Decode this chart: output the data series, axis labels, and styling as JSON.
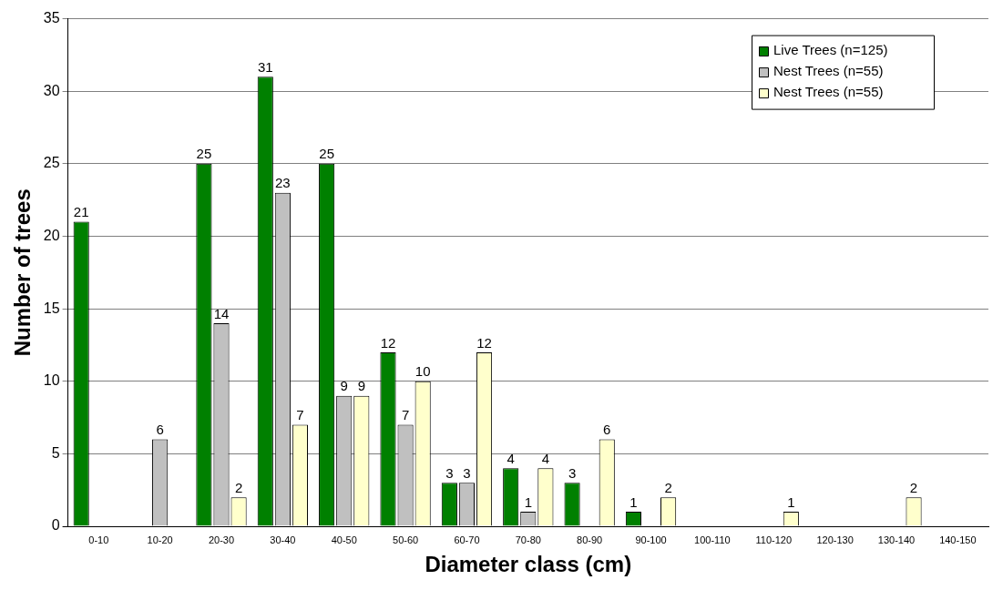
{
  "chart_data": {
    "type": "bar",
    "xlabel": "Diameter class (cm)",
    "ylabel": "Number of trees",
    "categories": [
      "0-10",
      "10-20",
      "20-30",
      "30-40",
      "40-50",
      "50-60",
      "60-70",
      "70-80",
      "80-90",
      "90-100",
      "100-110",
      "110-120",
      "120-130",
      "130-140",
      "140-150"
    ],
    "series": [
      {
        "name": "Live Trees (n=125)",
        "color": "#008000",
        "values": [
          21,
          0,
          25,
          31,
          25,
          12,
          3,
          4,
          3,
          1,
          0,
          0,
          0,
          0,
          0
        ],
        "value_labels": [
          "21",
          null,
          "25",
          "31",
          "25",
          "12",
          "3",
          "4",
          "3",
          "1",
          null,
          null,
          null,
          null,
          null
        ]
      },
      {
        "name": "Nest Trees (n=55)",
        "color": "#c0c0c0",
        "values": [
          0,
          6,
          14,
          23,
          9,
          7,
          3,
          1,
          0,
          0,
          0,
          0,
          0,
          0,
          0
        ],
        "value_labels": [
          null,
          "6",
          "14",
          "23",
          "9",
          "7",
          "3",
          "1",
          null,
          null,
          null,
          null,
          null,
          null,
          null
        ]
      },
      {
        "name": "Nest Trees (n=55)",
        "color": "#ffffcc",
        "values": [
          0,
          0,
          2,
          7,
          9,
          10,
          12,
          4,
          6,
          2,
          0,
          1,
          0,
          2,
          0
        ],
        "value_labels": [
          null,
          null,
          "2",
          "7",
          "9",
          "10",
          "12",
          "4",
          "6",
          "2",
          null,
          "1",
          null,
          "2",
          null
        ]
      }
    ],
    "ylim": [
      0,
      35
    ],
    "yticks": [
      0,
      5,
      10,
      15,
      20,
      25,
      30,
      35
    ],
    "grid": "y",
    "legend": "top right"
  }
}
